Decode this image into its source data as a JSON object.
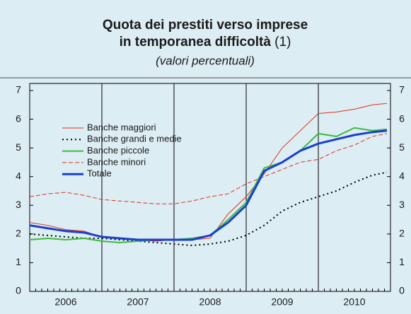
{
  "chart_data": {
    "type": "line",
    "title": [
      "Quota dei prestiti verso imprese",
      "in temporanea difficoltà"
    ],
    "title_note": "(1)",
    "subtitle": "(valori percentuali)",
    "x": [
      2006.0,
      2006.25,
      2006.5,
      2006.75,
      2007.0,
      2007.25,
      2007.5,
      2007.75,
      2008.0,
      2008.25,
      2008.5,
      2008.75,
      2009.0,
      2009.25,
      2009.5,
      2009.75,
      2010.0,
      2010.25,
      2010.5,
      2010.75,
      2010.95
    ],
    "xlim": [
      2006,
      2011
    ],
    "xticks": [
      {
        "value": 2006.5,
        "label": "2006"
      },
      {
        "value": 2007.5,
        "label": "2007"
      },
      {
        "value": 2008.5,
        "label": "2008"
      },
      {
        "value": 2009.5,
        "label": "2009"
      },
      {
        "value": 2010.5,
        "label": "2010"
      }
    ],
    "ylim": [
      0,
      7
    ],
    "yticks": [
      0,
      1,
      2,
      3,
      4,
      5,
      6,
      7
    ],
    "series": [
      {
        "name": "Banche maggiori",
        "color": "#e0301e",
        "style": "solid",
        "width": 1,
        "values": [
          2.4,
          2.3,
          2.15,
          2.1,
          1.9,
          1.85,
          1.8,
          1.75,
          1.8,
          1.8,
          1.85,
          2.7,
          3.3,
          4.1,
          5.0,
          5.6,
          6.2,
          6.25,
          6.35,
          6.5,
          6.55
        ]
      },
      {
        "name": "Banche grandi e medie",
        "color": "#000000",
        "style": "dotted",
        "width": 2,
        "values": [
          2.0,
          1.95,
          1.9,
          1.85,
          1.85,
          1.8,
          1.75,
          1.7,
          1.65,
          1.6,
          1.65,
          1.75,
          1.95,
          2.3,
          2.8,
          3.1,
          3.3,
          3.5,
          3.8,
          4.05,
          4.15
        ]
      },
      {
        "name": "Banche piccole",
        "color": "#3dbb3d",
        "style": "solid",
        "width": 2,
        "values": [
          1.8,
          1.85,
          1.8,
          1.85,
          1.75,
          1.7,
          1.75,
          1.8,
          1.8,
          1.85,
          1.95,
          2.5,
          3.1,
          4.3,
          4.5,
          4.9,
          5.5,
          5.4,
          5.7,
          5.6,
          5.65
        ]
      },
      {
        "name": "Banche minori",
        "color": "#e0301e",
        "style": "dashed",
        "width": 1,
        "values": [
          3.3,
          3.4,
          3.45,
          3.35,
          3.2,
          3.15,
          3.1,
          3.05,
          3.05,
          3.15,
          3.3,
          3.4,
          3.75,
          4.0,
          4.25,
          4.5,
          4.6,
          4.9,
          5.1,
          5.4,
          5.5
        ]
      },
      {
        "name": "Totale",
        "color": "#1a3fd0",
        "style": "solid",
        "width": 3,
        "values": [
          2.3,
          2.2,
          2.1,
          2.05,
          1.9,
          1.85,
          1.8,
          1.8,
          1.8,
          1.8,
          1.95,
          2.4,
          3.0,
          4.2,
          4.5,
          4.9,
          5.15,
          5.3,
          5.45,
          5.55,
          5.6
        ]
      }
    ]
  }
}
